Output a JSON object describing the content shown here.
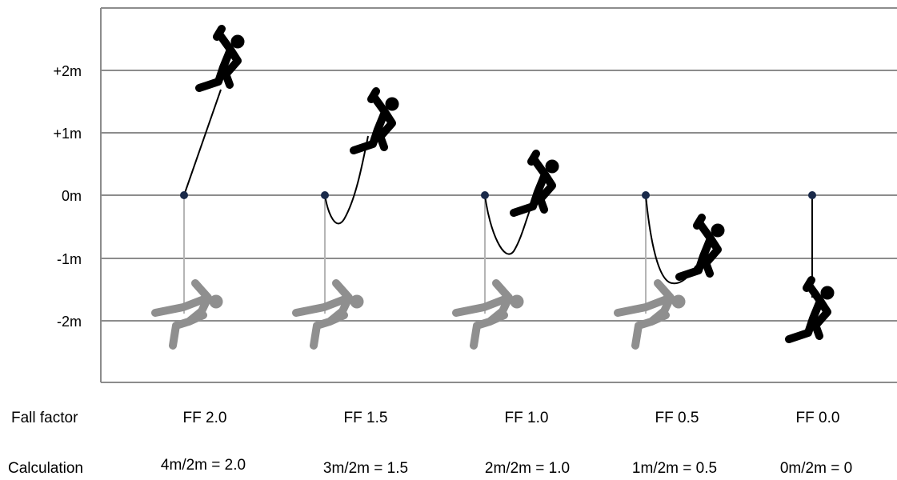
{
  "y_axis": {
    "labels": [
      "+2m",
      "+1m",
      "0m",
      "-1m",
      "-2m"
    ]
  },
  "rows": {
    "fall_factor_label": "Fall factor",
    "calculation_label": "Calculation"
  },
  "scenarios": [
    {
      "ff": "FF 2.0",
      "calc": "4m/2m = 2.0"
    },
    {
      "ff": "FF 1.5",
      "calc": "3m/2m = 1.5"
    },
    {
      "ff": "FF 1.0",
      "calc": "2m/2m = 1.0"
    },
    {
      "ff": "FF 0.5",
      "calc": "1m/2m = 0.5"
    },
    {
      "ff": "FF 0.0",
      "calc": "0m/2m = 0"
    }
  ],
  "colors": {
    "grid": "#8c8c8c",
    "climber": "#000000",
    "fallen": "#8f8f8f",
    "anchor": "#1a2a4a",
    "rope": "#000000",
    "dropline": "#b5b5b5"
  }
}
